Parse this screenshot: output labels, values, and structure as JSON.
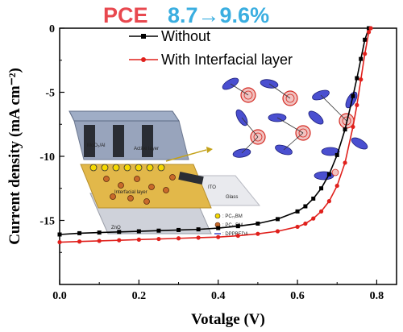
{
  "headline": {
    "left": "PCE",
    "right": "8.7→9.6%",
    "left_color": "#e8484f",
    "right_color": "#3aaee0"
  },
  "inset": {
    "label_moo3": "MoO₃/Al",
    "label_active": "Active layer",
    "label_interfacial": "Interfacial layer",
    "label_zno": "ZnO",
    "label_ito": "ITO",
    "label_glass": "Glass",
    "legend_pc71bm": ": PC₇₁BM",
    "legend_pc61bm": ": PC₆₁BM",
    "legend_dpp": ": DPPBEDA"
  },
  "chart_data": {
    "type": "line",
    "xlabel": "Votalge (V)",
    "ylabel": "Current density (mA cm⁻²)",
    "xlim": [
      0.0,
      0.85
    ],
    "ylim": [
      -20,
      0
    ],
    "xticks": [
      "0.0",
      "0.2",
      "0.4",
      "0.6",
      "0.8"
    ],
    "yticks": [
      "0",
      "-5",
      "-10",
      "-15"
    ],
    "legend_position": "top",
    "series": [
      {
        "name": "Without",
        "color": "#000000",
        "marker": "square",
        "x": [
          0.0,
          0.05,
          0.1,
          0.15,
          0.2,
          0.25,
          0.3,
          0.35,
          0.4,
          0.45,
          0.5,
          0.55,
          0.6,
          0.62,
          0.64,
          0.66,
          0.68,
          0.7,
          0.72,
          0.74,
          0.75,
          0.76,
          0.77,
          0.78
        ],
        "y": [
          -16.1,
          -16.0,
          -15.95,
          -15.9,
          -15.85,
          -15.8,
          -15.75,
          -15.7,
          -15.6,
          -15.45,
          -15.25,
          -14.9,
          -14.3,
          -13.9,
          -13.3,
          -12.5,
          -11.4,
          -9.9,
          -7.9,
          -5.3,
          -3.9,
          -2.4,
          -0.9,
          0.0
        ]
      },
      {
        "name": "With Interfacial layer",
        "color": "#e0201c",
        "marker": "circle",
        "x": [
          0.0,
          0.05,
          0.1,
          0.15,
          0.2,
          0.25,
          0.3,
          0.35,
          0.4,
          0.45,
          0.5,
          0.55,
          0.6,
          0.62,
          0.64,
          0.66,
          0.68,
          0.7,
          0.72,
          0.74,
          0.75,
          0.76,
          0.77,
          0.78,
          0.785
        ],
        "y": [
          -16.7,
          -16.65,
          -16.6,
          -16.55,
          -16.5,
          -16.45,
          -16.4,
          -16.35,
          -16.3,
          -16.2,
          -16.05,
          -15.85,
          -15.5,
          -15.25,
          -14.85,
          -14.3,
          -13.5,
          -12.3,
          -10.5,
          -7.7,
          -6.0,
          -4.0,
          -2.0,
          -0.3,
          0.0
        ]
      }
    ]
  }
}
